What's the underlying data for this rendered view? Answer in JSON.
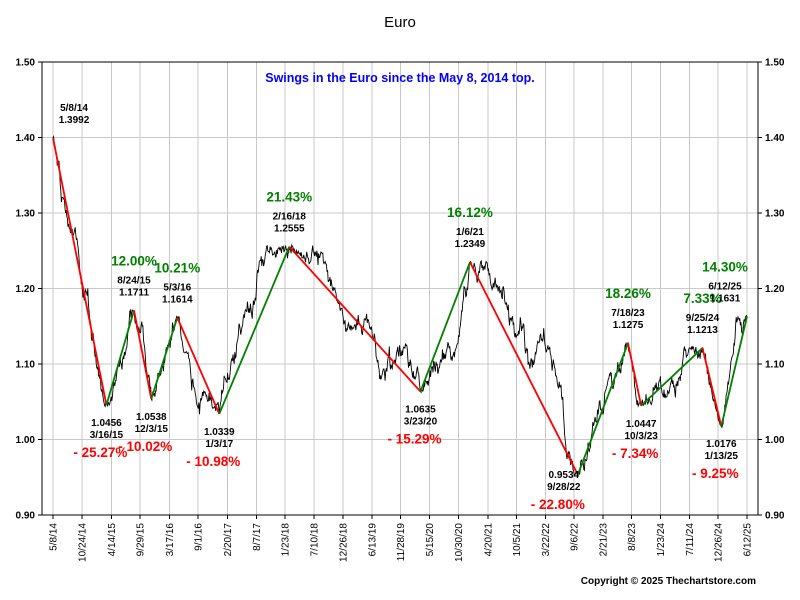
{
  "page": {
    "copyright": "Copyright © 2025 Thechartstore.com"
  },
  "colors": {
    "up": "#008000",
    "down": "#ff0000",
    "price_line": "#000000",
    "subtitle": "#0000ff",
    "grid": "#c9c9c9",
    "axis": "#000000"
  },
  "chart_data": {
    "type": "line",
    "title": "Euro",
    "subtitle": "Swings in the Euro since the May 8, 2014 top.",
    "ylabel": "",
    "xlabel": "",
    "ylim": [
      0.9,
      1.5
    ],
    "yticks": [
      1.5,
      1.4,
      1.3,
      1.2,
      1.1,
      1.0,
      0.9
    ],
    "grid": "on",
    "xticklabels": [
      "5/8/14",
      "10/24/14",
      "4/14/15",
      "9/29/15",
      "3/17/16",
      "9/1/16",
      "2/20/17",
      "8/7/17",
      "1/23/18",
      "7/10/18",
      "12/26/18",
      "6/13/19",
      "11/28/19",
      "5/15/20",
      "10/30/20",
      "4/20/21",
      "10/5/21",
      "3/22/22",
      "9/6/22",
      "2/21/23",
      "8/8/23",
      "1/23/24",
      "7/11/24",
      "12/26/24",
      "6/12/25"
    ],
    "swings": [
      {
        "date": "5/8/14",
        "price": 1.3992,
        "point": "high"
      },
      {
        "date": "3/16/15",
        "price": 1.0456,
        "point": "low",
        "pct": "- 25.27%",
        "direction": "down"
      },
      {
        "date": "8/24/15",
        "price": 1.1711,
        "point": "high",
        "pct": "12.00%",
        "direction": "up"
      },
      {
        "date": "12/3/15",
        "price": 1.0538,
        "point": "low",
        "pct": "- 10.02%",
        "direction": "down"
      },
      {
        "date": "5/3/16",
        "price": 1.1614,
        "point": "high",
        "pct": "10.21%",
        "direction": "up"
      },
      {
        "date": "1/3/17",
        "price": 1.0339,
        "point": "low",
        "pct": "- 10.98%",
        "direction": "down"
      },
      {
        "date": "2/16/18",
        "price": 1.2555,
        "point": "high",
        "pct": "21.43%",
        "direction": "up"
      },
      {
        "date": "3/23/20",
        "price": 1.0635,
        "point": "low",
        "pct": "- 15.29%",
        "direction": "down"
      },
      {
        "date": "1/6/21",
        "price": 1.2349,
        "point": "high",
        "pct": "16.12%",
        "direction": "up"
      },
      {
        "date": "9/28/22",
        "price": 0.9534,
        "point": "low",
        "pct": "- 22.80%",
        "direction": "down"
      },
      {
        "date": "7/18/23",
        "price": 1.1275,
        "point": "high",
        "pct": "18.26%",
        "direction": "up"
      },
      {
        "date": "10/3/23",
        "price": 1.0447,
        "point": "low",
        "pct": "- 7.34%",
        "direction": "down"
      },
      {
        "date": "9/25/24",
        "price": 1.1213,
        "point": "high",
        "pct": "7.33%",
        "direction": "up"
      },
      {
        "date": "1/13/25",
        "price": 1.0176,
        "point": "low",
        "pct": "- 9.25%",
        "direction": "down"
      },
      {
        "date": "6/12/25",
        "price": 1.1631,
        "point": "high",
        "pct": "14.30%",
        "direction": "up"
      }
    ]
  }
}
